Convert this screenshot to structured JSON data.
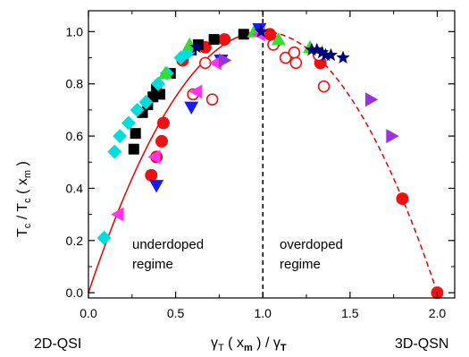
{
  "chart_data": {
    "type": "scatter",
    "title": "",
    "xlabel": "γT ( xm ) / γT",
    "xlabel_parts": {
      "g1": "γ",
      "s1": "T",
      "p1": " ( x",
      "s2": "m",
      "p2": " )  /  ",
      "g2": "γ",
      "s3": "T"
    },
    "ylabel": "Tc / Tc ( xm )",
    "ylabel_parts": {
      "t1": "T",
      "s1": "c",
      "p1": " / T",
      "s2": "c",
      "p2": " ( x",
      "s3": "m",
      "p3": " )"
    },
    "xlim": [
      0,
      2.1
    ],
    "ylim": [
      -0.02,
      1.08
    ],
    "x_ticks": [
      "0.0",
      "0.5",
      "1.0",
      "1.5",
      "2.0"
    ],
    "x_tick_values": [
      0,
      0.5,
      1.0,
      1.5,
      2.0
    ],
    "y_ticks": [
      "0.0",
      "0.2",
      "0.4",
      "0.6",
      "0.8",
      "1.0"
    ],
    "y_tick_values": [
      0,
      0.2,
      0.4,
      0.6,
      0.8,
      1.0
    ],
    "annotations": {
      "underdoped_1": "underdoped",
      "underdoped_2": "regime",
      "overdoped_1": "overdoped",
      "overdoped_2": "regime",
      "left_corner": "2D-QSI",
      "right_corner": "3D-QSN"
    },
    "vline_x": 1.0,
    "fit_curve": {
      "color": "#e60000",
      "style": "solid-then-dashed",
      "split_x": 1.0,
      "x_range": [
        0,
        2.0
      ]
    },
    "series": [
      {
        "marker": "circle-filled",
        "color": "#ee1111",
        "points": [
          [
            0.36,
            0.45
          ],
          [
            0.39,
            0.52
          ],
          [
            0.42,
            0.58
          ],
          [
            0.43,
            0.65
          ],
          [
            0.54,
            0.89
          ],
          [
            0.67,
            0.94
          ],
          [
            0.78,
            0.97
          ],
          [
            1.04,
            0.99
          ],
          [
            1.07,
            0.96
          ],
          [
            1.33,
            0.88
          ],
          [
            1.8,
            0.36
          ],
          [
            2.0,
            0.0
          ]
        ]
      },
      {
        "marker": "circle-open",
        "color": "#ee1111",
        "points": [
          [
            0.6,
            0.76
          ],
          [
            0.67,
            0.88
          ],
          [
            0.71,
            0.74
          ],
          [
            1.06,
            0.95
          ],
          [
            1.13,
            0.9
          ],
          [
            1.18,
            0.92
          ],
          [
            1.19,
            0.88
          ],
          [
            1.32,
            0.91
          ],
          [
            1.35,
            0.79
          ]
        ]
      },
      {
        "marker": "square-filled",
        "color": "#000000",
        "points": [
          [
            0.26,
            0.55
          ],
          [
            0.27,
            0.61
          ],
          [
            0.31,
            0.69
          ],
          [
            0.34,
            0.72
          ],
          [
            0.37,
            0.75
          ],
          [
            0.39,
            0.78
          ],
          [
            0.41,
            0.76
          ],
          [
            0.47,
            0.84
          ],
          [
            0.59,
            0.93
          ],
          [
            0.63,
            0.95
          ],
          [
            0.72,
            0.97
          ],
          [
            0.89,
            0.99
          ]
        ]
      },
      {
        "marker": "diamond-filled",
        "color": "#00dddd",
        "points": [
          [
            0.09,
            0.21
          ],
          [
            0.15,
            0.54
          ],
          [
            0.18,
            0.6
          ],
          [
            0.23,
            0.65
          ],
          [
            0.28,
            0.7
          ],
          [
            0.33,
            0.73
          ],
          [
            0.4,
            0.8
          ],
          [
            0.45,
            0.84
          ],
          [
            0.53,
            0.9
          ],
          [
            0.57,
            0.92
          ]
        ]
      },
      {
        "marker": "triangle-up-filled",
        "color": "#33dd33",
        "points": [
          [
            0.44,
            0.84
          ],
          [
            0.58,
            0.95
          ],
          [
            0.95,
            1.0
          ],
          [
            1.09,
            0.97
          ],
          [
            1.27,
            0.94
          ]
        ]
      },
      {
        "marker": "triangle-down-filled",
        "color": "#1a1aee",
        "points": [
          [
            0.39,
            0.41
          ],
          [
            0.59,
            0.71
          ],
          [
            0.76,
            0.89
          ],
          [
            0.98,
            1.01
          ]
        ]
      },
      {
        "marker": "triangle-left-filled",
        "color": "#ff33ee",
        "points": [
          [
            0.17,
            0.3
          ],
          [
            0.38,
            0.52
          ],
          [
            0.62,
            0.77
          ],
          [
            0.73,
            0.88
          ],
          [
            0.98,
            0.99
          ]
        ]
      },
      {
        "marker": "triangle-right-filled",
        "color": "#9933dd",
        "points": [
          [
            0.78,
            0.89
          ],
          [
            1.62,
            0.74
          ],
          [
            1.74,
            0.6
          ]
        ]
      },
      {
        "marker": "star-filled",
        "color": "#000077",
        "points": [
          [
            0.62,
            0.94
          ],
          [
            0.99,
            1.0
          ],
          [
            1.28,
            0.93
          ],
          [
            1.31,
            0.93
          ],
          [
            1.34,
            0.92
          ],
          [
            1.36,
            0.91
          ],
          [
            1.39,
            0.91
          ],
          [
            1.46,
            0.9
          ]
        ]
      }
    ]
  }
}
